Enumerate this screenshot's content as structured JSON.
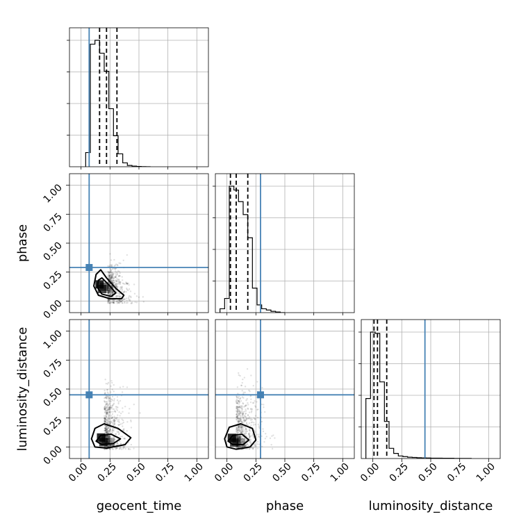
{
  "chart_data": {
    "type": "scatter",
    "subtype": "corner",
    "parameters": [
      "geocent_time",
      "phase",
      "luminosity_distance"
    ],
    "xlabels": [
      "geocent_time",
      "phase",
      "luminosity_distance"
    ],
    "ylabels": [
      "",
      "phase",
      "luminosity_distance"
    ],
    "range": [
      -0.1,
      1.1
    ],
    "tick_values": [
      0.0,
      0.25,
      0.5,
      0.75,
      1.0
    ],
    "tick_labels": [
      "0.00",
      "0.25",
      "0.50",
      "0.75",
      "1.00"
    ],
    "grid": true,
    "colors": {
      "truth": "#4682b4",
      "histogram": "#000000",
      "contours": "#000000"
    },
    "truths": {
      "geocent_time": 0.07,
      "phase": 0.29,
      "luminosity_distance": 0.45
    },
    "histograms": [
      {
        "parameter": "geocent_time",
        "bin_edges": [
          0.04,
          0.08,
          0.12,
          0.16,
          0.2,
          0.24,
          0.28,
          0.32,
          0.36,
          0.4,
          0.44,
          0.48,
          0.52,
          0.56,
          0.6
        ],
        "counts": [
          0.11,
          0.95,
          0.98,
          0.88,
          0.74,
          0.45,
          0.24,
          0.1,
          0.03,
          0.01,
          0.005,
          0.002,
          0.001,
          0.0
        ],
        "quantiles": [
          0.16,
          0.22,
          0.31
        ]
      },
      {
        "parameter": "phase",
        "bin_edges": [
          -0.06,
          -0.02,
          0.02,
          0.06,
          0.1,
          0.14,
          0.18,
          0.22,
          0.26,
          0.3,
          0.34,
          0.38,
          0.42,
          0.46,
          0.5
        ],
        "counts": [
          0.03,
          0.11,
          0.98,
          0.95,
          0.86,
          0.76,
          0.58,
          0.19,
          0.06,
          0.03,
          0.02,
          0.01,
          0.005,
          0.0
        ],
        "quantiles": [
          0.03,
          0.08,
          0.18
        ]
      },
      {
        "parameter": "luminosity_distance",
        "bin_edges": [
          -0.06,
          -0.02,
          0.02,
          0.06,
          0.1,
          0.14,
          0.18,
          0.22,
          0.26,
          0.3,
          0.34,
          0.38,
          0.42,
          0.46,
          0.5,
          0.6,
          0.7,
          0.85
        ],
        "counts": [
          0.47,
          0.99,
          0.98,
          0.6,
          0.29,
          0.08,
          0.04,
          0.02,
          0.015,
          0.01,
          0.008,
          0.006,
          0.005,
          0.004,
          0.003,
          0.002,
          0.001
        ],
        "quantiles": [
          0.01,
          0.04,
          0.12
        ]
      }
    ],
    "pairs": [
      {
        "x": "geocent_time",
        "y": "phase",
        "point_cloud": {
          "x_center": 0.23,
          "y_center": 0.11,
          "x_spread": 0.08,
          "y_spread": 0.1,
          "correlation": -0.55,
          "count": 520
        },
        "contour_levels": [
          [
            [
              0.13,
              0.23
            ],
            [
              0.17,
              0.27
            ],
            [
              0.22,
              0.2
            ],
            [
              0.3,
              0.11
            ],
            [
              0.37,
              0.05
            ],
            [
              0.35,
              0.02
            ],
            [
              0.25,
              0.02
            ],
            [
              0.15,
              0.05
            ],
            [
              0.11,
              0.13
            ],
            [
              0.13,
              0.23
            ]
          ],
          [
            [
              0.15,
              0.18
            ],
            [
              0.18,
              0.2
            ],
            [
              0.24,
              0.14
            ],
            [
              0.3,
              0.07
            ],
            [
              0.26,
              0.04
            ],
            [
              0.18,
              0.06
            ],
            [
              0.14,
              0.12
            ],
            [
              0.15,
              0.18
            ]
          ]
        ]
      },
      {
        "x": "geocent_time",
        "y": "luminosity_distance",
        "point_cloud": {
          "x_center": 0.2,
          "y_center": 0.15,
          "x_spread": 0.07,
          "y_spread": 0.18,
          "correlation": 0.0,
          "count": 620
        },
        "contour_levels": [
          [
            [
              0.09,
              0.07
            ],
            [
              0.12,
              0.16
            ],
            [
              0.2,
              0.2
            ],
            [
              0.32,
              0.16
            ],
            [
              0.43,
              0.08
            ],
            [
              0.38,
              0.02
            ],
            [
              0.22,
              -0.01
            ],
            [
              0.12,
              0.0
            ],
            [
              0.09,
              0.07
            ]
          ],
          [
            [
              0.13,
              0.05
            ],
            [
              0.17,
              0.1
            ],
            [
              0.26,
              0.11
            ],
            [
              0.34,
              0.07
            ],
            [
              0.28,
              0.03
            ],
            [
              0.18,
              0.02
            ],
            [
              0.13,
              0.05
            ]
          ]
        ]
      },
      {
        "x": "phase",
        "y": "luminosity_distance",
        "point_cloud": {
          "x_center": 0.08,
          "y_center": 0.15,
          "x_spread": 0.08,
          "y_spread": 0.18,
          "correlation": 0.0,
          "count": 620
        },
        "contour_levels": [
          [
            [
              -0.02,
              0.07
            ],
            [
              0.02,
              0.17
            ],
            [
              0.12,
              0.2
            ],
            [
              0.22,
              0.16
            ],
            [
              0.25,
              0.06
            ],
            [
              0.2,
              0.0
            ],
            [
              0.08,
              -0.02
            ],
            [
              0.0,
              0.0
            ],
            [
              -0.02,
              0.07
            ]
          ],
          [
            [
              0.01,
              0.05
            ],
            [
              0.05,
              0.1
            ],
            [
              0.13,
              0.11
            ],
            [
              0.19,
              0.06
            ],
            [
              0.14,
              0.02
            ],
            [
              0.05,
              0.02
            ],
            [
              0.01,
              0.05
            ]
          ]
        ]
      }
    ]
  }
}
